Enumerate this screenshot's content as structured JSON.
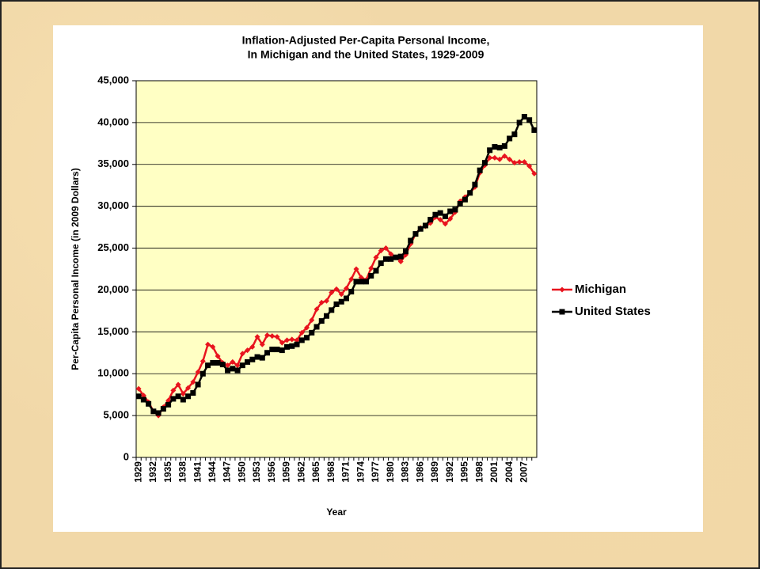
{
  "chart_data": {
    "type": "line",
    "title": [
      "Inflation-Adjusted Per-Capita Personal Income,",
      "In Michigan and the United States, 1929-2009"
    ],
    "x_label": "Year",
    "y_label": "Per-Capita Personal Income (in 2009 Dollars)",
    "categories": [
      "1929",
      null,
      null,
      "1932",
      null,
      null,
      "1935",
      null,
      null,
      "1938",
      null,
      null,
      "1941",
      null,
      null,
      "1944",
      null,
      null,
      "1947",
      null,
      null,
      "1950",
      null,
      null,
      "1953",
      null,
      null,
      "1956",
      null,
      null,
      "1959",
      null,
      null,
      "1962",
      null,
      null,
      "1965",
      null,
      null,
      "1968",
      null,
      null,
      "1971",
      null,
      null,
      "1974",
      null,
      null,
      "1977",
      null,
      null,
      "1980",
      null,
      null,
      "1983",
      null,
      null,
      "1986",
      null,
      null,
      "1989",
      null,
      null,
      "1992",
      null,
      null,
      "1995",
      null,
      null,
      "1998",
      null,
      null,
      "2001",
      null,
      null,
      "2004",
      null,
      null,
      "2007",
      null,
      null
    ],
    "series": [
      {
        "name": "Michigan",
        "color": "#e8141e",
        "marker": "diamond",
        "values": [
          8200,
          7400,
          6600,
          5500,
          5000,
          6000,
          6800,
          8000,
          8700,
          7600,
          8300,
          9000,
          10200,
          11500,
          13500,
          13200,
          12100,
          11300,
          11000,
          11400,
          11000,
          12400,
          12800,
          13200,
          14400,
          13500,
          14600,
          14500,
          14400,
          13700,
          14000,
          14100,
          14000,
          14900,
          15500,
          16400,
          17700,
          18500,
          18700,
          19700,
          20100,
          19500,
          20200,
          21300,
          22500,
          21500,
          21200,
          22600,
          23900,
          24700,
          25000,
          24300,
          23900,
          23400,
          24200,
          25500,
          26700,
          27400,
          27600,
          28000,
          28700,
          28400,
          27900,
          28500,
          29300,
          30600,
          31100,
          31600,
          32300,
          34000,
          34900,
          35800,
          35800,
          35600,
          36000,
          35600,
          35200,
          35300,
          35300,
          34800,
          33900
        ]
      },
      {
        "name": "United States",
        "color": "#000000",
        "marker": "square",
        "values": [
          7300,
          6900,
          6400,
          5500,
          5300,
          5800,
          6300,
          7000,
          7300,
          6900,
          7300,
          7700,
          8700,
          10000,
          11000,
          11300,
          11300,
          11100,
          10400,
          10600,
          10400,
          11000,
          11400,
          11700,
          12000,
          11900,
          12500,
          12900,
          12900,
          12800,
          13200,
          13300,
          13500,
          14000,
          14300,
          14900,
          15600,
          16300,
          16900,
          17600,
          18300,
          18600,
          19000,
          19800,
          21000,
          21000,
          21000,
          21700,
          22300,
          23200,
          23700,
          23700,
          23900,
          24000,
          24600,
          25900,
          26700,
          27300,
          27700,
          28400,
          29000,
          29200,
          28800,
          29400,
          29600,
          30300,
          30800,
          31600,
          32600,
          34300,
          35200,
          36700,
          37100,
          37000,
          37200,
          38100,
          38600,
          40000,
          40700,
          40300,
          39100
        ]
      }
    ],
    "ylim": [
      0,
      45000
    ],
    "yticks": [
      0,
      {
        "value": 5000,
        "label": "5,000"
      },
      {
        "value": 10000,
        "label": "10,000"
      },
      {
        "value": 15000,
        "label": "15,000"
      },
      {
        "value": 20000,
        "label": "20,000"
      },
      {
        "value": 25000,
        "label": "25,000"
      },
      {
        "value": 30000,
        "label": "30,000"
      },
      {
        "value": 35000,
        "label": "35,000"
      },
      {
        "value": 40000,
        "label": "40,000"
      },
      {
        "value": 45000,
        "label": "45,000"
      }
    ],
    "grid": true,
    "legend": "right",
    "plot_background": "#ffffc4"
  }
}
